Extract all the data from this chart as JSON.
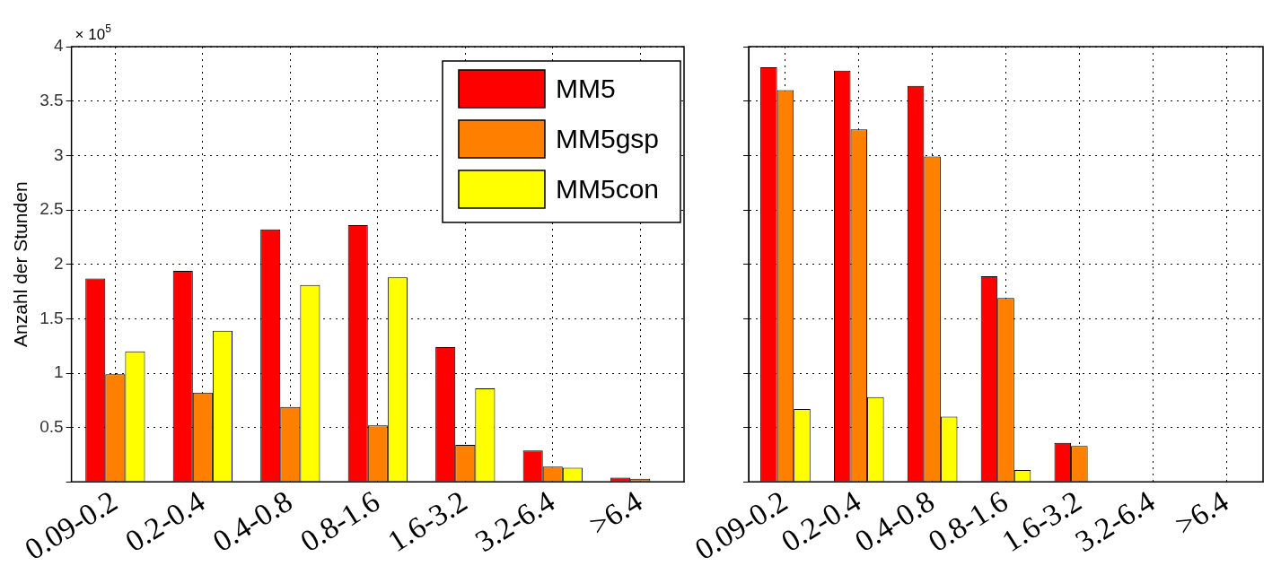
{
  "chart_data": [
    {
      "type": "bar",
      "ylabel": "Anzahl der Stunden",
      "annotations": [
        "× 10$^{5}$"
      ],
      "categories": [
        "0.09-0.2",
        "0.2-0.4",
        "0.4-0.8",
        "0.8-1.6",
        "1.6-3.2",
        "3.2-6.4",
        ">6.4"
      ],
      "series": [
        {
          "name": "MM5",
          "color": "#ff0000",
          "values": [
            1.87,
            1.94,
            2.32,
            2.36,
            1.24,
            0.29,
            0.04
          ]
        },
        {
          "name": "MM5gsp",
          "color": "#ff8000",
          "values": [
            0.99,
            0.82,
            0.69,
            0.52,
            0.34,
            0.14,
            0.03
          ]
        },
        {
          "name": "MM5con",
          "color": "#ffff00",
          "values": [
            1.2,
            1.39,
            1.81,
            1.88,
            0.86,
            0.13,
            null
          ]
        }
      ],
      "ylim": [
        0,
        4
      ],
      "yticks": [
        {
          "value": 0,
          "label": null
        },
        0.5,
        1,
        1.5,
        2,
        2.5,
        3,
        3.5,
        4
      ],
      "grid": true,
      "legend": "top right"
    },
    {
      "type": "bar",
      "categories": [
        "0.09-0.2",
        "0.2-0.4",
        "0.4-0.8",
        "0.8-1.6",
        "1.6-3.2",
        "3.2-6.4",
        ">6.4"
      ],
      "series": [
        {
          "color": "#ff0000",
          "values": [
            3.81,
            3.78,
            3.64,
            1.89,
            0.36,
            null,
            null
          ]
        },
        {
          "color": "#ff8000",
          "values": [
            3.6,
            3.24,
            2.99,
            1.69,
            0.33,
            null,
            null
          ]
        },
        {
          "color": "#ffff00",
          "values": [
            0.67,
            0.78,
            0.6,
            0.11,
            null,
            null,
            null
          ]
        }
      ],
      "ylim": [
        0,
        4
      ],
      "yticks": [
        0,
        0.5,
        1,
        1.5,
        2,
        2.5,
        3,
        3.5,
        4
      ],
      "grid": true,
      "tick_labels": "x"
    }
  ]
}
